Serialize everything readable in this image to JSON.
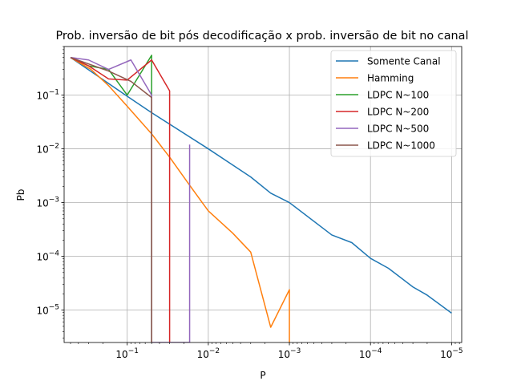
{
  "chart_data": {
    "type": "line",
    "title": "Prob. inversão de bit pós decodificação x prob. inversão de bit no canal",
    "xlabel": "P",
    "ylabel": "Pb",
    "xscale": "log",
    "yscale": "log",
    "x_axis_inverted": true,
    "xlim": [
      0.6,
      7.5e-06
    ],
    "ylim": [
      2.5e-06,
      0.8
    ],
    "grid": true,
    "legend_position": "top-right",
    "x_ticks": [
      {
        "value": 0.1,
        "label": "10^-1"
      },
      {
        "value": 0.01,
        "label": "10^-2"
      },
      {
        "value": 0.001,
        "label": "10^-3"
      },
      {
        "value": 0.0001,
        "label": "10^-4"
      },
      {
        "value": 1e-05,
        "label": "10^-5"
      }
    ],
    "y_ticks": [
      {
        "value": 0.1,
        "label": "10^-1"
      },
      {
        "value": 0.01,
        "label": "10^-2"
      },
      {
        "value": 0.001,
        "label": "10^-3"
      },
      {
        "value": 0.0001,
        "label": "10^-4"
      },
      {
        "value": 1e-05,
        "label": "10^-5"
      }
    ],
    "series": [
      {
        "name": "Somente Canal",
        "color": "#1f77b4",
        "x": [
          0.5,
          0.1,
          0.05,
          0.01,
          0.005,
          0.003,
          0.0017,
          0.001,
          0.0003,
          0.00017,
          0.0001,
          6e-05,
          3e-05,
          2e-05,
          1e-05
        ],
        "y": [
          0.5,
          0.095,
          0.047,
          0.01,
          0.005,
          0.003,
          0.0015,
          0.001,
          0.00025,
          0.00018,
          9.2e-05,
          6e-05,
          2.7e-05,
          1.9e-05,
          8.8e-06
        ]
      },
      {
        "name": "Hamming",
        "color": "#ff7f0e",
        "x": [
          0.5,
          0.28,
          0.17,
          0.1,
          0.05,
          0.03,
          0.017,
          0.01,
          0.005,
          0.003,
          0.0017,
          0.001,
          0.001
        ],
        "y": [
          0.5,
          0.3,
          0.15,
          0.062,
          0.019,
          0.007,
          0.0021,
          0.0007,
          0.00027,
          0.00012,
          4.8e-06,
          2.4e-05,
          2.5e-06
        ]
      },
      {
        "name": "LDPC N~100",
        "color": "#2ca02c",
        "x": [
          0.5,
          0.3,
          0.17,
          0.1,
          0.05,
          0.05
        ],
        "y": [
          0.5,
          0.35,
          0.3,
          0.1,
          0.55,
          2.5e-06
        ]
      },
      {
        "name": "LDPC N~200",
        "color": "#d62728",
        "x": [
          0.5,
          0.3,
          0.17,
          0.1,
          0.05,
          0.03,
          0.03
        ],
        "y": [
          0.5,
          0.35,
          0.2,
          0.19,
          0.45,
          0.12,
          2.5e-06
        ]
      },
      {
        "name": "LDPC N~500",
        "color": "#9467bd",
        "x": [
          0.5,
          0.3,
          0.17,
          0.09,
          0.05,
          0.05,
          0.017,
          0.017
        ],
        "y": [
          0.5,
          0.45,
          0.3,
          0.45,
          0.1,
          2.5e-06,
          2.5e-06,
          0.012
        ]
      },
      {
        "name": "LDPC N~1000",
        "color": "#8c564b",
        "x": [
          0.5,
          0.3,
          0.17,
          0.09,
          0.05,
          0.05
        ],
        "y": [
          0.5,
          0.38,
          0.28,
          0.18,
          0.09,
          2.5e-06
        ]
      }
    ]
  }
}
